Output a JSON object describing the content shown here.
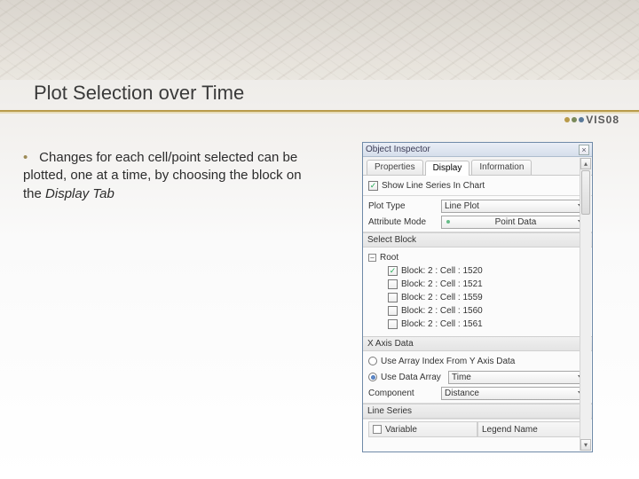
{
  "slide": {
    "title": "Plot Selection over Time",
    "bullet_color": "#9c8a55",
    "body_html": "Changes for each cell/point selected can be plotted, one at a time, by choosing the block on the <em>Display Tab</em>",
    "logo_text": "VIS08",
    "logo_dots": [
      "#b99b4a",
      "#7a8a5a",
      "#5a7a9a"
    ]
  },
  "inspector": {
    "title": "Object Inspector",
    "tabs": [
      "Properties",
      "Display",
      "Information"
    ],
    "active_tab": 1,
    "show_line_series": {
      "label": "Show Line Series In Chart",
      "checked": true
    },
    "plot_type": {
      "label": "Plot Type",
      "value": "Line Plot"
    },
    "attribute_mode": {
      "label": "Attribute Mode",
      "value": "Point Data"
    },
    "select_block": {
      "header": "Select Block",
      "root": "Root",
      "items": [
        {
          "label": "Block: 2 : Cell : 1520",
          "checked": true
        },
        {
          "label": "Block: 2 : Cell : 1521",
          "checked": false
        },
        {
          "label": "Block: 2 : Cell : 1559",
          "checked": false
        },
        {
          "label": "Block: 2 : Cell : 1560",
          "checked": false
        },
        {
          "label": "Block: 2 : Cell : 1561",
          "checked": false
        }
      ]
    },
    "x_axis": {
      "header": "X Axis Data",
      "use_index_label": "Use Array Index From Y Axis Data",
      "use_array_label": "Use Data Array",
      "selected": "array",
      "array_value": "Time",
      "component_label": "Component",
      "component_value": "Distance"
    },
    "line_series": {
      "header": "Line Series",
      "col1": "Variable",
      "col2": "Legend Name"
    }
  }
}
